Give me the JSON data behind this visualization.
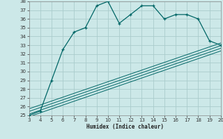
{
  "xlabel": "Humidex (Indice chaleur)",
  "bg_color": "#cce8e8",
  "grid_color": "#aacccc",
  "line_color": "#006666",
  "x_main": [
    3,
    4,
    5,
    6,
    7,
    8,
    9,
    10,
    11,
    12,
    13,
    14,
    15,
    16,
    17,
    18,
    19,
    20
  ],
  "y_main": [
    25,
    25.5,
    29,
    32.5,
    34.5,
    35,
    37.5,
    38,
    35.5,
    36.5,
    37.5,
    37.5,
    36,
    36.5,
    36.5,
    36,
    33.5,
    33
  ],
  "diag_lines": [
    {
      "x": [
        3,
        20
      ],
      "y": [
        25.15,
        32.65
      ]
    },
    {
      "x": [
        3,
        20
      ],
      "y": [
        25.45,
        32.95
      ]
    },
    {
      "x": [
        3,
        20
      ],
      "y": [
        25.75,
        33.25
      ]
    },
    {
      "x": [
        3,
        20
      ],
      "y": [
        24.85,
        32.35
      ]
    }
  ],
  "ylim": [
    25,
    38
  ],
  "xlim": [
    3,
    20
  ],
  "yticks": [
    25,
    26,
    27,
    28,
    29,
    30,
    31,
    32,
    33,
    34,
    35,
    36,
    37,
    38
  ],
  "xticks": [
    3,
    4,
    5,
    6,
    7,
    8,
    9,
    10,
    11,
    12,
    13,
    14,
    15,
    16,
    17,
    18,
    19,
    20
  ]
}
